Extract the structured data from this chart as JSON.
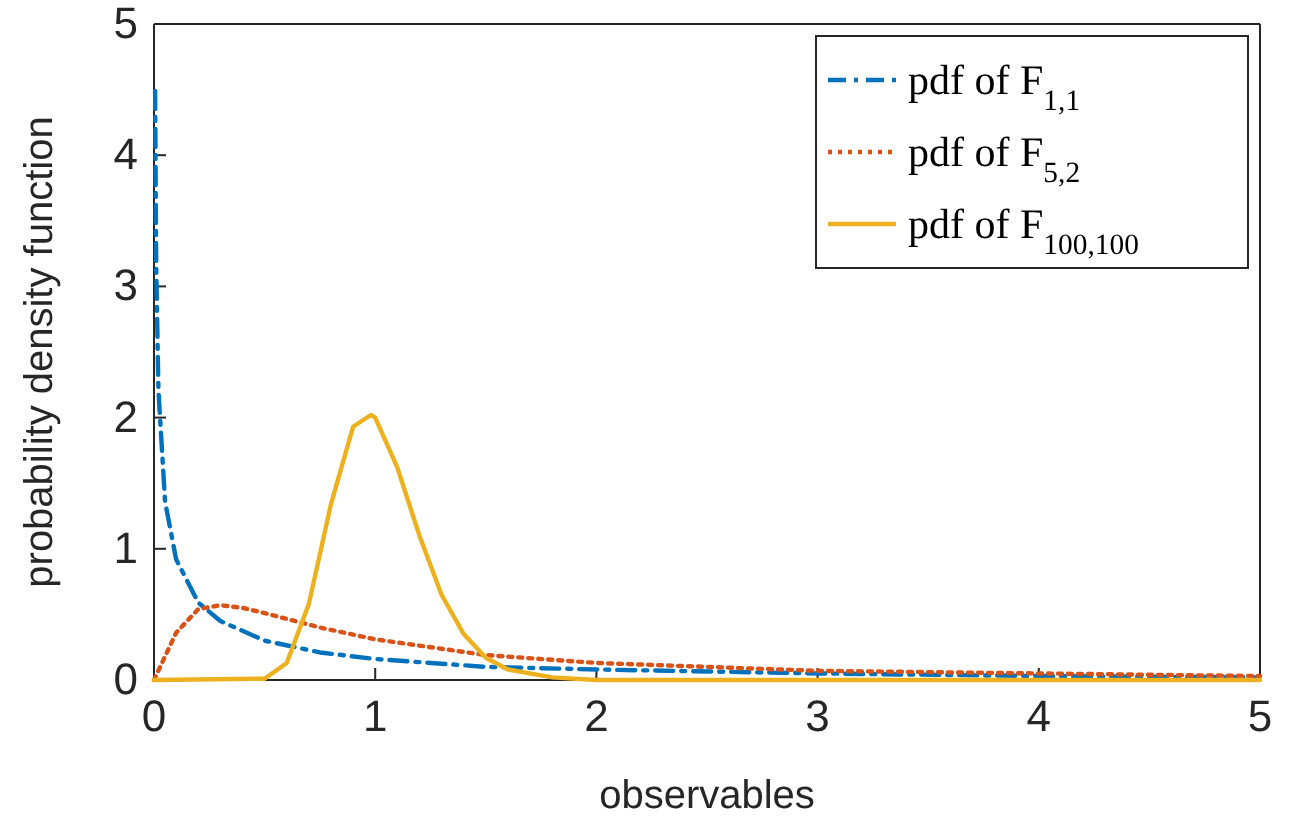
{
  "chart_data": {
    "type": "line",
    "xlabel": "observables",
    "ylabel": "probability density function",
    "xlim": [
      0,
      5
    ],
    "ylim": [
      0,
      5
    ],
    "xticks": [
      0,
      1,
      2,
      3,
      4,
      5
    ],
    "yticks": [
      0,
      1,
      2,
      3,
      4,
      5
    ],
    "legend": "top right",
    "grid": false,
    "series": [
      {
        "name": "pdf of F$_{1,1}$",
        "color": "#0072bd",
        "line_style": "dashdot",
        "x": [
          0.005,
          0.01,
          0.02,
          0.05,
          0.1,
          0.2,
          0.3,
          0.5,
          0.75,
          1,
          1.5,
          2,
          3,
          4,
          5
        ],
        "values": [
          4.49,
          3.15,
          2.21,
          1.36,
          0.92,
          0.59,
          0.45,
          0.3,
          0.21,
          0.16,
          0.1,
          0.08,
          0.05,
          0.03,
          0.02
        ]
      },
      {
        "name": "pdf of F$_{5,2}$",
        "color": "#d95319",
        "line_style": "dotted",
        "x": [
          0,
          0.05,
          0.1,
          0.2,
          0.3,
          0.4,
          0.5,
          0.75,
          1,
          1.5,
          2,
          3,
          4,
          5
        ],
        "values": [
          0,
          0.18,
          0.36,
          0.54,
          0.57,
          0.55,
          0.51,
          0.4,
          0.31,
          0.19,
          0.13,
          0.07,
          0.05,
          0.03
        ]
      },
      {
        "name": "pdf of F$_{100,100}$",
        "color": "#edb120",
        "line_style": "solid",
        "x": [
          0,
          0.5,
          0.6,
          0.7,
          0.8,
          0.9,
          0.98,
          1,
          1.1,
          1.2,
          1.3,
          1.4,
          1.5,
          1.6,
          1.8,
          2,
          5
        ],
        "values": [
          0,
          0.01,
          0.13,
          0.58,
          1.34,
          1.93,
          2.02,
          2,
          1.62,
          1.1,
          0.65,
          0.35,
          0.17,
          0.08,
          0.02,
          0,
          0
        ]
      }
    ]
  }
}
